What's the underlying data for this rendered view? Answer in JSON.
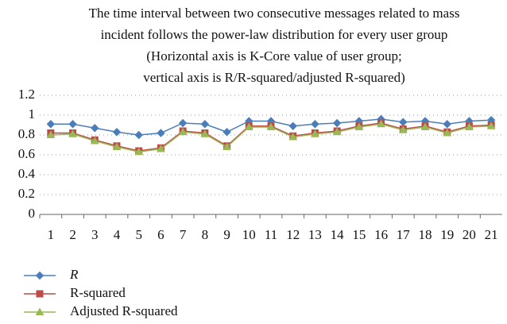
{
  "chart_data": {
    "type": "line",
    "title": [
      "The time interval between two consecutive messages related to mass",
      "incident follows the power-law distribution for every user group",
      "(Horizontal axis is K-Core value of user group;",
      "vertical axis is R/R-squared/adjusted R-squared)"
    ],
    "categories": [
      "1",
      "2",
      "3",
      "4",
      "5",
      "6",
      "7",
      "8",
      "9",
      "10",
      "11",
      "12",
      "13",
      "14",
      "15",
      "16",
      "17",
      "18",
      "19",
      "20",
      "21"
    ],
    "series": [
      {
        "name": "R",
        "color": "#4a7ebb",
        "marker": "diamond",
        "values": [
          0.91,
          0.91,
          0.87,
          0.83,
          0.8,
          0.82,
          0.92,
          0.91,
          0.83,
          0.94,
          0.94,
          0.89,
          0.91,
          0.92,
          0.94,
          0.96,
          0.93,
          0.94,
          0.91,
          0.94,
          0.95
        ]
      },
      {
        "name": "R-squared",
        "color": "#be4b48",
        "marker": "square",
        "values": [
          0.82,
          0.82,
          0.75,
          0.69,
          0.64,
          0.67,
          0.84,
          0.82,
          0.69,
          0.89,
          0.89,
          0.79,
          0.82,
          0.84,
          0.89,
          0.92,
          0.86,
          0.89,
          0.83,
          0.89,
          0.9
        ]
      },
      {
        "name": "Adjusted R-squared",
        "color": "#98b954",
        "marker": "triangle",
        "values": [
          0.8,
          0.81,
          0.74,
          0.68,
          0.63,
          0.66,
          0.83,
          0.81,
          0.68,
          0.88,
          0.88,
          0.78,
          0.81,
          0.83,
          0.88,
          0.91,
          0.85,
          0.88,
          0.82,
          0.88,
          0.89
        ]
      }
    ],
    "ylim": [
      0,
      1.2
    ],
    "yticks": [
      0,
      0.2,
      0.4,
      0.6,
      0.8,
      1,
      1.2
    ],
    "grid": true,
    "legend": "bottom-left"
  }
}
